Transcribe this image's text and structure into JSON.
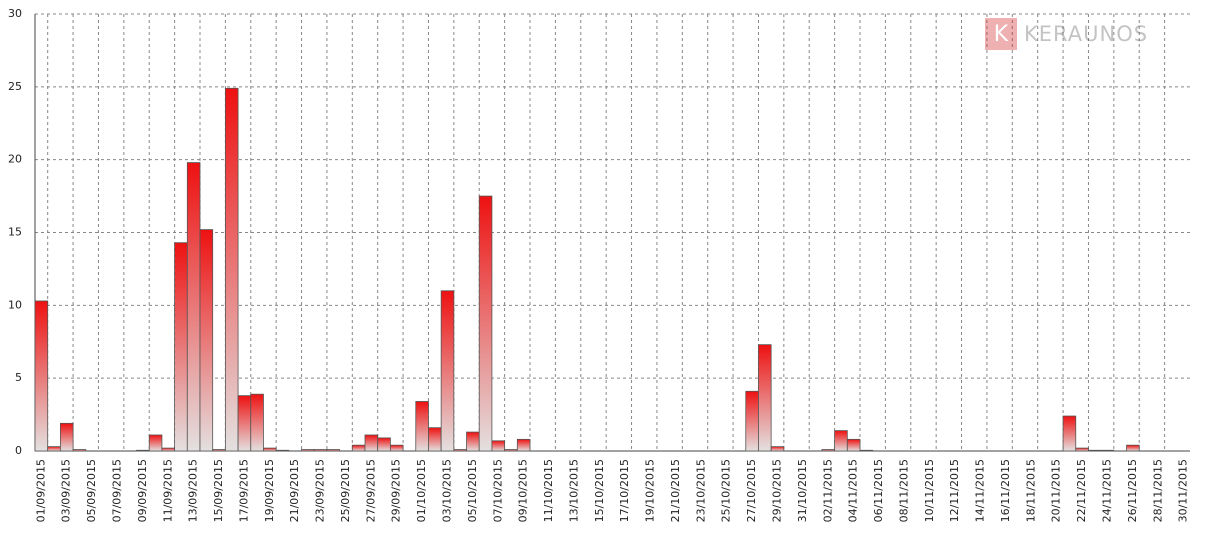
{
  "chart_data": {
    "type": "bar",
    "watermark": {
      "icon": "K",
      "text": "KERAUNOS"
    },
    "categories": [
      "01/09/2015",
      null,
      "03/09/2015",
      null,
      "05/09/2015",
      null,
      "07/09/2015",
      null,
      "09/09/2015",
      null,
      "11/09/2015",
      null,
      "13/09/2015",
      null,
      "15/09/2015",
      null,
      "17/09/2015",
      null,
      "19/09/2015",
      null,
      "21/09/2015",
      null,
      "23/09/2015",
      null,
      "25/09/2015",
      null,
      "27/09/2015",
      null,
      "29/09/2015",
      null,
      "01/10/2015",
      null,
      "03/10/2015",
      null,
      "05/10/2015",
      null,
      "07/10/2015",
      null,
      "09/10/2015",
      null,
      "11/10/2015",
      null,
      "13/10/2015",
      null,
      "15/10/2015",
      null,
      "17/10/2015",
      null,
      "19/10/2015",
      null,
      "21/10/2015",
      null,
      "23/10/2015",
      null,
      "25/10/2015",
      null,
      "27/10/2015",
      null,
      "29/10/2015",
      null,
      "31/10/2015",
      null,
      "02/11/2015",
      null,
      "04/11/2015",
      null,
      "06/11/2015",
      null,
      "08/11/2015",
      null,
      "10/11/2015",
      null,
      "12/11/2015",
      null,
      "14/11/2015",
      null,
      "16/11/2015",
      null,
      "18/11/2015",
      null,
      "20/11/2015",
      null,
      "22/11/2015",
      null,
      "24/11/2015",
      null,
      "26/11/2015",
      null,
      "28/11/2015",
      null,
      "30/11/2015"
    ],
    "values": [
      10.3,
      0.3,
      1.9,
      0.1,
      0,
      0,
      0,
      0,
      0.05,
      1.1,
      0.2,
      14.3,
      19.8,
      15.2,
      0.1,
      24.9,
      3.8,
      3.9,
      0.2,
      0.05,
      0,
      0.1,
      0.1,
      0.1,
      0,
      0.4,
      1.1,
      0.9,
      0.4,
      0,
      3.4,
      1.6,
      11.0,
      0.1,
      1.3,
      17.5,
      0.7,
      0.1,
      0.8,
      0,
      0,
      0,
      0,
      0,
      0,
      0,
      0,
      0,
      0,
      0,
      0,
      0,
      0,
      0,
      0,
      0,
      4.1,
      7.3,
      0.3,
      0,
      0,
      0,
      0.1,
      1.4,
      0.8,
      0.05,
      0,
      0,
      0,
      0,
      0,
      0,
      0,
      0,
      0,
      0,
      0,
      0,
      0,
      0,
      0,
      2.4,
      0.2,
      0.05,
      0.05,
      0,
      0.4,
      0,
      0,
      0,
      0
    ],
    "color": "#ee0000",
    "ylim": [
      0,
      30
    ],
    "yticks": [
      0,
      5,
      10,
      15,
      20,
      25,
      30
    ],
    "grid": true
  }
}
